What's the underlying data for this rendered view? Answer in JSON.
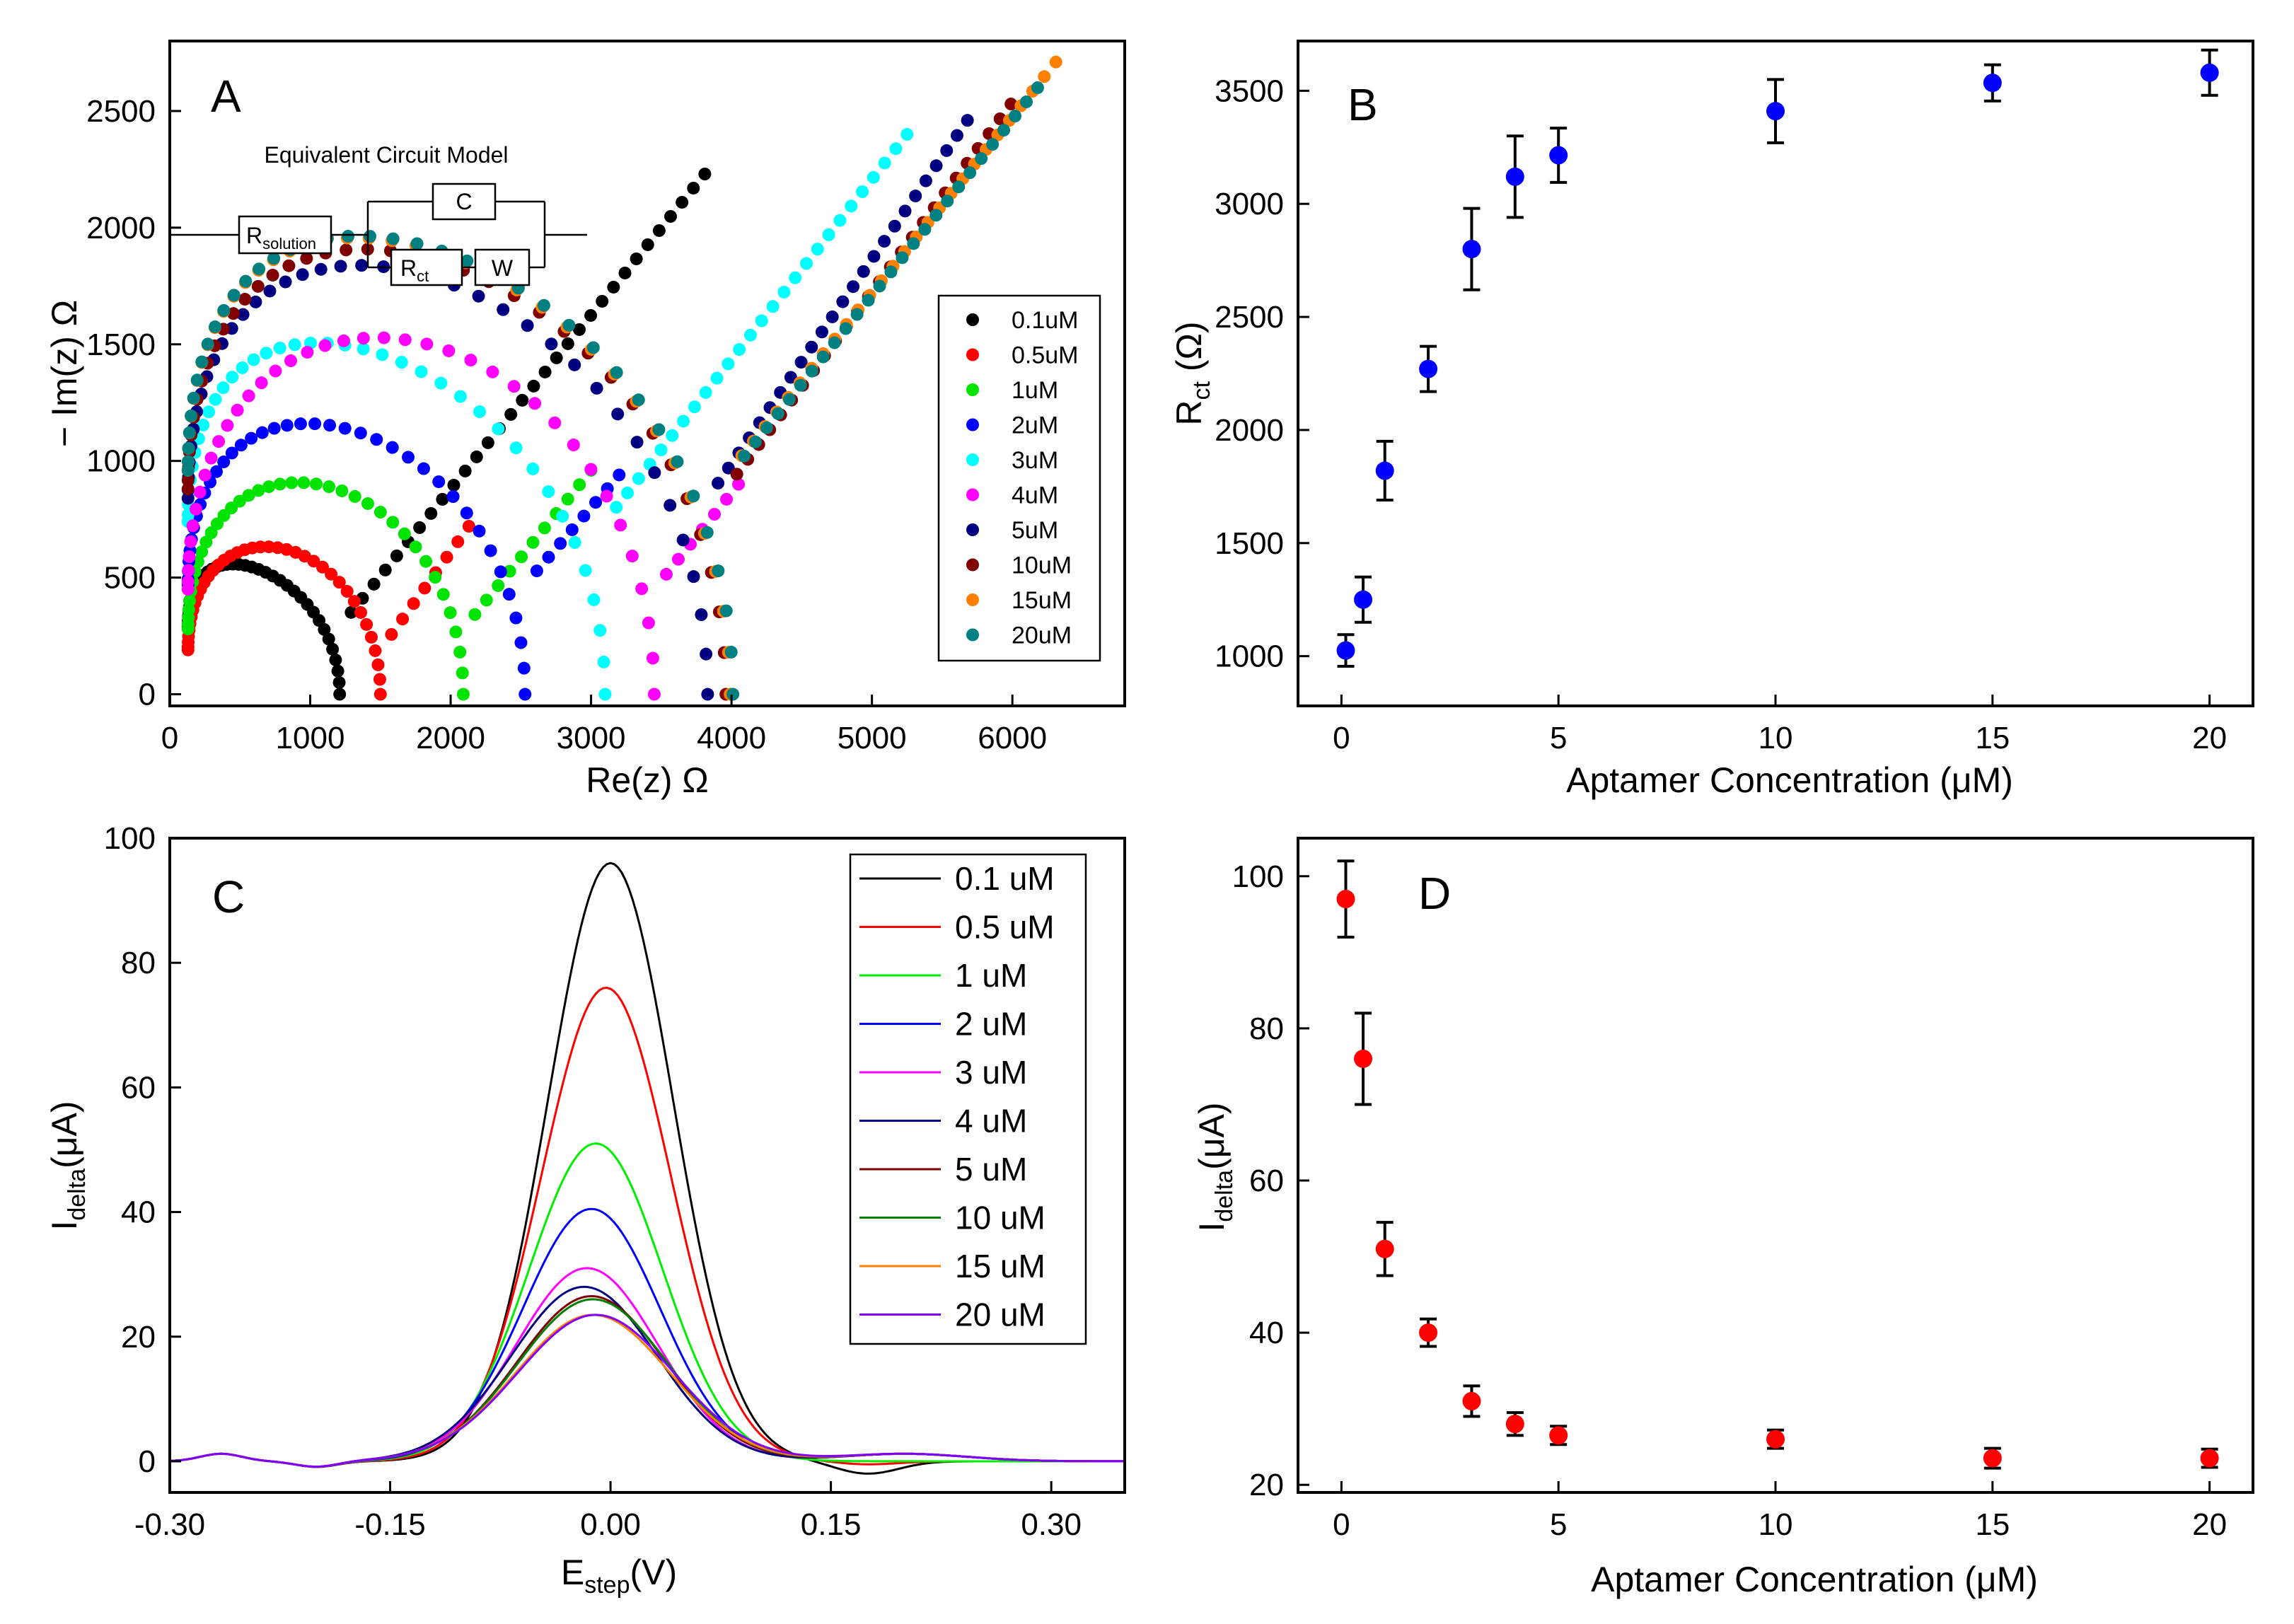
{
  "chart_data": [
    {
      "id": "A",
      "type": "scatter",
      "panel_label": "A",
      "title": "",
      "xlabel": "Re(z) Ω",
      "ylabel": "− Im(z) Ω",
      "xlim": [
        0,
        6800
      ],
      "ylim": [
        -50,
        2800
      ],
      "xticks": [
        0,
        1000,
        2000,
        3000,
        4000,
        5000,
        6000
      ],
      "yticks": [
        0,
        500,
        1000,
        1500,
        2000,
        2500
      ],
      "legend_position": "right-center",
      "inset": {
        "title": "Equivalent Circuit Model",
        "r_solution": {
          "main": "R",
          "sub": "solution"
        },
        "capacitor": "C",
        "r_ct": {
          "main": "R",
          "sub": "ct"
        },
        "warburg": "W"
      },
      "series": [
        {
          "name": "0.1uM",
          "color": "#000000",
          "rs": 130,
          "rct": 1080,
          "ymin": 290,
          "tail_end": [
            3810,
            2230
          ]
        },
        {
          "name": "0.5uM",
          "color": "#ff0000",
          "rs": 130,
          "rct": 1370,
          "ymin": 190,
          "tail_end": [
            2130,
            720
          ]
        },
        {
          "name": "1uM",
          "color": "#00e400",
          "rs": 130,
          "rct": 1960,
          "ymin": 280,
          "tail_end": [
            3000,
            960
          ]
        },
        {
          "name": "2uM",
          "color": "#0000ff",
          "rs": 130,
          "rct": 2400,
          "ymin": 470,
          "tail_end": [
            3200,
            940
          ]
        },
        {
          "name": "3uM",
          "color": "#00ffff",
          "rs": 130,
          "rct": 2970,
          "ymin": 740,
          "tail_end": [
            5250,
            2400
          ]
        },
        {
          "name": "4uM",
          "color": "#ff00ff",
          "rs": 130,
          "rct": 3320,
          "ymin": 450,
          "tail_end": [
            4050,
            900
          ]
        },
        {
          "name": "5uM",
          "color": "#000080",
          "rs": 130,
          "rct": 3700,
          "ymin": 840,
          "tail_end": [
            5680,
            2460
          ]
        },
        {
          "name": "10uM",
          "color": "#800000",
          "rs": 130,
          "rct": 3830,
          "ymin": 880,
          "tail_end": [
            5990,
            2530
          ]
        },
        {
          "name": "15uM",
          "color": "#ff8000",
          "rs": 130,
          "rct": 3860,
          "ymin": 960,
          "tail_end": [
            6310,
            2710
          ]
        },
        {
          "name": "20uM",
          "color": "#008080",
          "rs": 130,
          "rct": 3880,
          "ymin": 960,
          "tail_end": [
            6180,
            2600
          ]
        }
      ]
    },
    {
      "id": "B",
      "type": "scatter",
      "panel_label": "B",
      "title": "",
      "xlabel": "Aptamer Concentration (μM)",
      "ylabel_main": "R",
      "ylabel_sub": "ct",
      "ylabel_tail": " (Ω)",
      "xlim": [
        -1,
        21
      ],
      "ylim": [
        780,
        3720
      ],
      "xticks": [
        0,
        5,
        10,
        15,
        20
      ],
      "yticks": [
        1000,
        1500,
        2000,
        2500,
        3000,
        3500
      ],
      "marker_color": "#0000ff",
      "x": [
        0.1,
        0.5,
        1,
        2,
        3,
        4,
        5,
        10,
        15,
        20
      ],
      "y": [
        1025,
        1250,
        1820,
        2270,
        2800,
        3120,
        3215,
        3410,
        3535,
        3580
      ],
      "err": [
        70,
        100,
        130,
        100,
        180,
        180,
        120,
        140,
        80,
        100
      ]
    },
    {
      "id": "C",
      "type": "line",
      "panel_label": "C",
      "title": "",
      "xlabel_main": "E",
      "xlabel_sub": "step",
      "xlabel_tail": "(V)",
      "ylabel_main": "I",
      "ylabel_sub": "delta",
      "ylabel_tail": "(μA)",
      "xlim": [
        -0.3,
        0.35
      ],
      "ylim": [
        -5,
        100
      ],
      "xticks": [
        -0.3,
        -0.15,
        0.0,
        0.15,
        0.3
      ],
      "xtick_labels": [
        "-0.30",
        "-0.15",
        "0.00",
        "0.15",
        "0.30"
      ],
      "yticks": [
        0,
        20,
        40,
        60,
        80,
        100
      ],
      "legend_position": "top-right",
      "series": [
        {
          "name": "0.1 uM",
          "color": "#000000",
          "peak": 96,
          "center": 0.0,
          "width": 0.06,
          "dip": -2.0
        },
        {
          "name": "0.5 uM",
          "color": "#ff0000",
          "peak": 76,
          "center": -0.003,
          "width": 0.062,
          "dip": -0.5
        },
        {
          "name": "1 uM",
          "color": "#00ee00",
          "peak": 51,
          "center": -0.01,
          "width": 0.064,
          "dip": 0.0
        },
        {
          "name": "2 uM",
          "color": "#0000ff",
          "peak": 40.5,
          "center": -0.013,
          "width": 0.066,
          "dip": 0.0
        },
        {
          "name": "3 uM",
          "color": "#ff00ff",
          "peak": 31,
          "center": -0.016,
          "width": 0.068,
          "dip": 0.0
        },
        {
          "name": "4 uM",
          "color": "#000080",
          "peak": 28,
          "center": -0.018,
          "width": 0.07,
          "dip": 0.0
        },
        {
          "name": "5 uM",
          "color": "#800000",
          "peak": 26.5,
          "center": -0.013,
          "width": 0.071,
          "dip": 0.0
        },
        {
          "name": "10 uM",
          "color": "#008000",
          "peak": 26,
          "center": -0.012,
          "width": 0.072,
          "dip": 0.0
        },
        {
          "name": "15 uM",
          "color": "#ff8000",
          "peak": 23.5,
          "center": -0.012,
          "width": 0.074,
          "dip": 0.0
        },
        {
          "name": "20 uM",
          "color": "#8000ff",
          "peak": 23.5,
          "center": -0.01,
          "width": 0.075,
          "dip": 0.0
        }
      ]
    },
    {
      "id": "D",
      "type": "scatter",
      "panel_label": "D",
      "title": "",
      "xlabel": "Aptamer Concentration (μM)",
      "ylabel_main": "I",
      "ylabel_sub": "delta",
      "ylabel_tail": "(μA)",
      "xlim": [
        -1,
        21
      ],
      "ylim": [
        19,
        105
      ],
      "xticks": [
        0,
        5,
        10,
        15,
        20
      ],
      "yticks": [
        20,
        40,
        60,
        80,
        100
      ],
      "marker_color": "#ff0000",
      "x": [
        0.1,
        0.5,
        1,
        2,
        3,
        4,
        5,
        10,
        15,
        20
      ],
      "y": [
        97,
        76,
        51,
        40,
        31,
        28,
        26.5,
        26,
        23.5,
        23.5
      ],
      "err": [
        5,
        6,
        3.5,
        1.8,
        2,
        1.5,
        1.2,
        1.2,
        1.3,
        1.2
      ]
    }
  ]
}
